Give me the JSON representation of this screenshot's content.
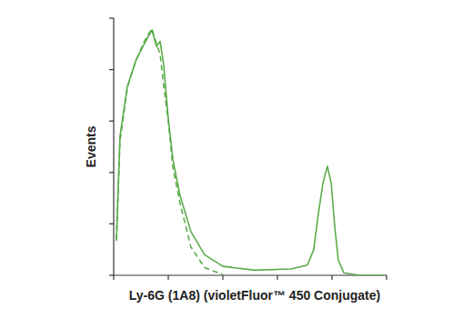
{
  "chart_data": {
    "type": "line",
    "x_label": "Ly-6G (1A8) (violetFluor™ 450 Conjugate)",
    "y_label": "Events",
    "x": [
      10,
      23,
      50,
      83,
      117,
      140,
      157,
      170,
      183,
      200,
      217,
      243,
      283,
      333,
      400,
      517,
      650,
      710,
      733,
      750,
      767,
      783,
      797,
      810,
      823,
      843,
      900,
      1000
    ],
    "series": [
      {
        "color": "#5aac4a",
        "line_style": "solid",
        "values": [
          13.4,
          54,
          73.5,
          84,
          91,
          95.4,
          89,
          91,
          82,
          61,
          45,
          31,
          17,
          8,
          3.5,
          2,
          2.5,
          4,
          10,
          24,
          36,
          42.4,
          36,
          19,
          6,
          1,
          0,
          0
        ]
      },
      {
        "color": "#5aac4a",
        "line_style": "dashed",
        "values": [
          14,
          52,
          73,
          84,
          92,
          96,
          90,
          86,
          74,
          60,
          42,
          28,
          11,
          3,
          0.3,
          null,
          null,
          null,
          null,
          null,
          null,
          null,
          null,
          null,
          null,
          null,
          null,
          null
        ]
      }
    ],
    "xlim": [
      0,
      1000
    ],
    "xticks": [
      0,
      200,
      400,
      600,
      800,
      1000
    ],
    "ylim": [
      0,
      100
    ],
    "yticks": [
      0,
      20,
      40,
      60,
      80,
      100
    ],
    "grid": false,
    "tick_labels": false
  }
}
